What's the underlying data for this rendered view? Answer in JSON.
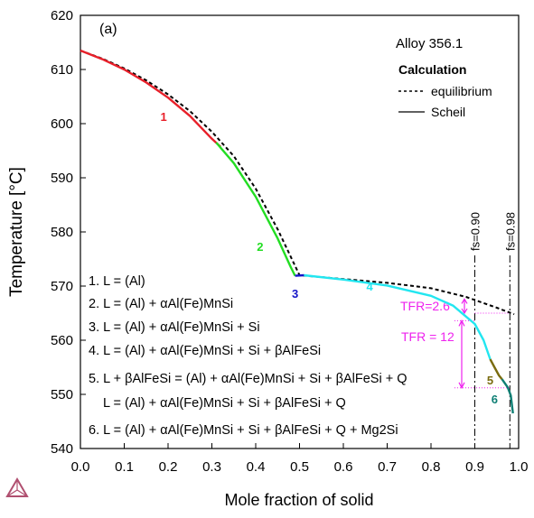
{
  "chart_data": {
    "type": "line",
    "panel_label": "(a)",
    "title": "Alloy 356.1",
    "xlabel": "Mole fraction of solid",
    "ylabel": "Temperature [°C]",
    "xlim": [
      0.0,
      1.0
    ],
    "ylim": [
      540,
      620
    ],
    "x_ticks": [
      "0.0",
      "0.1",
      "0.2",
      "0.3",
      "0.4",
      "0.5",
      "0.6",
      "0.7",
      "0.8",
      "0.9",
      "1.0"
    ],
    "y_ticks": [
      "540",
      "550",
      "560",
      "570",
      "580",
      "590",
      "600",
      "610",
      "620"
    ],
    "grid": false,
    "legend": {
      "placement": "top-right",
      "heading": "Calculation",
      "entries": [
        {
          "label": "equilibrium",
          "style": "dashed",
          "color": "#000000"
        },
        {
          "label": "Scheil",
          "style": "solid",
          "color": "#000000"
        }
      ]
    },
    "series": [
      {
        "name": "equilibrium",
        "style": "dashed",
        "color": "#000000",
        "points": [
          [
            0.0,
            613.5
          ],
          [
            0.05,
            612.0
          ],
          [
            0.1,
            610.2
          ],
          [
            0.15,
            608.0
          ],
          [
            0.2,
            605.4
          ],
          [
            0.25,
            602.3
          ],
          [
            0.3,
            598.5
          ],
          [
            0.35,
            594.0
          ],
          [
            0.4,
            588.0
          ],
          [
            0.45,
            580.5
          ],
          [
            0.5,
            572.0
          ],
          [
            0.6,
            571.3
          ],
          [
            0.7,
            570.6
          ],
          [
            0.8,
            569.6
          ],
          [
            0.88,
            568.0
          ],
          [
            0.95,
            566.0
          ],
          [
            0.99,
            564.8
          ]
        ]
      },
      {
        "name": "",
        "segment_label": "1",
        "color": "#e8202a",
        "points": [
          [
            0.0,
            613.5
          ],
          [
            0.05,
            611.9
          ],
          [
            0.1,
            610.0
          ],
          [
            0.15,
            607.6
          ],
          [
            0.2,
            604.8
          ],
          [
            0.25,
            601.4
          ],
          [
            0.3,
            597.2
          ],
          [
            0.32,
            595.7
          ]
        ]
      },
      {
        "name": "",
        "segment_label": "2",
        "color": "#22dd22",
        "points": [
          [
            0.31,
            596.5
          ],
          [
            0.35,
            592.7
          ],
          [
            0.4,
            586.5
          ],
          [
            0.45,
            578.8
          ],
          [
            0.48,
            573.5
          ],
          [
            0.49,
            571.9
          ]
        ]
      },
      {
        "name": "",
        "segment_label": "3",
        "color": "#1515c8",
        "points": [
          [
            0.49,
            571.9
          ],
          [
            0.51,
            572.0
          ]
        ]
      },
      {
        "name": "",
        "segment_label": "4",
        "color": "#22e6f0",
        "points": [
          [
            0.51,
            572.0
          ],
          [
            0.6,
            571.2
          ],
          [
            0.7,
            570.1
          ],
          [
            0.8,
            568.2
          ],
          [
            0.85,
            566.4
          ],
          [
            0.9,
            563.0
          ],
          [
            0.92,
            560.0
          ],
          [
            0.935,
            556.5
          ]
        ]
      },
      {
        "name": "",
        "segment_label": "5",
        "color": "#7a6c10",
        "points": [
          [
            0.935,
            556.5
          ],
          [
            0.945,
            555.0
          ],
          [
            0.955,
            553.5
          ],
          [
            0.962,
            552.8
          ]
        ]
      },
      {
        "name": "",
        "segment_label": "6",
        "color": "#0e7f74",
        "points": [
          [
            0.962,
            552.8
          ],
          [
            0.975,
            551.3
          ],
          [
            0.982,
            549.8
          ],
          [
            0.987,
            546.5
          ]
        ]
      }
    ],
    "vlines": [
      {
        "x": 0.9,
        "label": "fs=0.90"
      },
      {
        "x": 0.98,
        "label": "fs=0.98"
      }
    ],
    "annotations": {
      "tfr_small": {
        "label": "TFR=2.6",
        "from_temp": 567.6,
        "to_temp": 565.0
      },
      "tfr_large": {
        "label": "TFR = 12",
        "from_temp": 563.6,
        "to_temp": 551.2
      }
    },
    "reactions": [
      "1. L = (Al)",
      "2. L = (Al) + αAl(Fe)MnSi",
      "3. L = (Al) + αAl(Fe)MnSi + Si",
      "4. L = (Al) + αAl(Fe)MnSi + Si + βAlFeSi",
      "5. L + βAlFeSi = (Al) + αAl(Fe)MnSi + Si + βAlFeSi + Q",
      "L = (Al) + αAl(Fe)MnSi + Si + βAlFeSi + Q",
      "6. L = (Al) + αAl(Fe)MnSi + Si + βAlFeSi + Q + Mg2Si"
    ],
    "colors": {
      "tfr_magenta": "#ee22ee",
      "logo": "#b05070"
    },
    "logo_icon": "thermo-calc-logo-icon"
  }
}
